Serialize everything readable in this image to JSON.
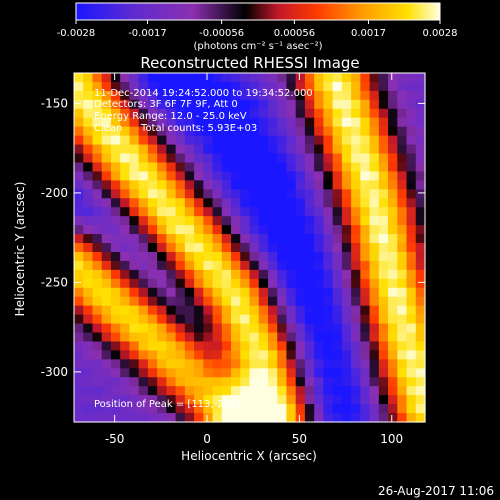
{
  "colors": {
    "background": "#000000",
    "foreground": "#ffffff",
    "colormap": [
      "#1a16ff",
      "#5f2bd0",
      "#8b2fb0",
      "#000000",
      "#c0172a",
      "#ff3a00",
      "#ff9a00",
      "#ffe000",
      "#ffffe0"
    ]
  },
  "colorbar": {
    "tick_labels": [
      "-0.0028",
      "-0.0017",
      "-0.00056",
      "0.00056",
      "0.0017",
      "0.0028"
    ],
    "tick_values": [
      -0.0028,
      -0.0017,
      -0.00056,
      0.00056,
      0.0017,
      0.0028
    ],
    "range": [
      -0.0028,
      0.0028
    ],
    "units_label": "(photons cm⁻² s⁻¹ asec⁻²)"
  },
  "annotations": {
    "time_range": "11-Dec-2014 19:24:52.000 to 19:34:52.000",
    "detectors": "Detectors: 3F 6F 7F 9F, Att 0",
    "energy": "Energy Range: 12.0 - 25.0 keV",
    "clean_label": "Clean",
    "total_counts": "Total counts: 5.93E+03",
    "peak_position": "Position of Peak = [113,-294]",
    "plot_date": "26-Aug-2017 11:06"
  },
  "chart_data": {
    "type": "heatmap",
    "title": "Reconstructed RHESSI Image",
    "xlabel": "Heliocentric X (arcsec)",
    "ylabel": "Heliocentric Y (arcsec)",
    "xlim": [
      -72,
      118
    ],
    "ylim": [
      -328,
      -133
    ],
    "x_ticks": [
      -50,
      0,
      50,
      100
    ],
    "x_tick_labels": [
      "-50",
      "0",
      "50",
      "100"
    ],
    "y_ticks": [
      -150,
      -200,
      -250,
      -300
    ],
    "y_tick_labels": [
      "-150",
      "-200",
      "-250",
      "-300"
    ],
    "value_range": [
      -0.0028,
      0.0028
    ],
    "colormap_values": [
      -0.0028,
      -0.0019,
      -0.001,
      -0.0002,
      0.0003,
      0.0009,
      0.0016,
      0.0023,
      0.0028
    ],
    "peak": {
      "x": 113,
      "y": -294
    },
    "grid": false,
    "pixel_grid": {
      "nx": 38,
      "ny": 39
    },
    "bands": [
      {
        "kind": "positive",
        "amplitude": 0.0028,
        "width": 30,
        "path": [
          [
            -72,
            -140
          ],
          [
            -40,
            -185
          ],
          [
            -10,
            -225
          ],
          [
            15,
            -258
          ],
          [
            30,
            -290
          ],
          [
            40,
            -328
          ]
        ]
      },
      {
        "kind": "positive",
        "amplitude": 0.0026,
        "width": 28,
        "path": [
          [
            -72,
            -240
          ],
          [
            -50,
            -262
          ],
          [
            -25,
            -285
          ],
          [
            0,
            -310
          ],
          [
            15,
            -328
          ]
        ]
      },
      {
        "kind": "positive",
        "amplitude": 0.0028,
        "width": 30,
        "path": [
          [
            68,
            -133
          ],
          [
            82,
            -175
          ],
          [
            92,
            -210
          ],
          [
            100,
            -250
          ],
          [
            110,
            -290
          ],
          [
            118,
            -320
          ]
        ]
      },
      {
        "kind": "negative",
        "amplitude": -0.0028,
        "width": 32,
        "path": [
          [
            -20,
            -133
          ],
          [
            10,
            -160
          ],
          [
            30,
            -195
          ],
          [
            50,
            -240
          ],
          [
            60,
            -280
          ],
          [
            70,
            -328
          ]
        ]
      },
      {
        "kind": "negative",
        "amplitude": -0.0016,
        "width": 24,
        "path": [
          [
            -72,
            -205
          ],
          [
            -50,
            -220
          ],
          [
            -30,
            -240
          ],
          [
            -10,
            -265
          ],
          [
            5,
            -300
          ]
        ]
      }
    ]
  }
}
